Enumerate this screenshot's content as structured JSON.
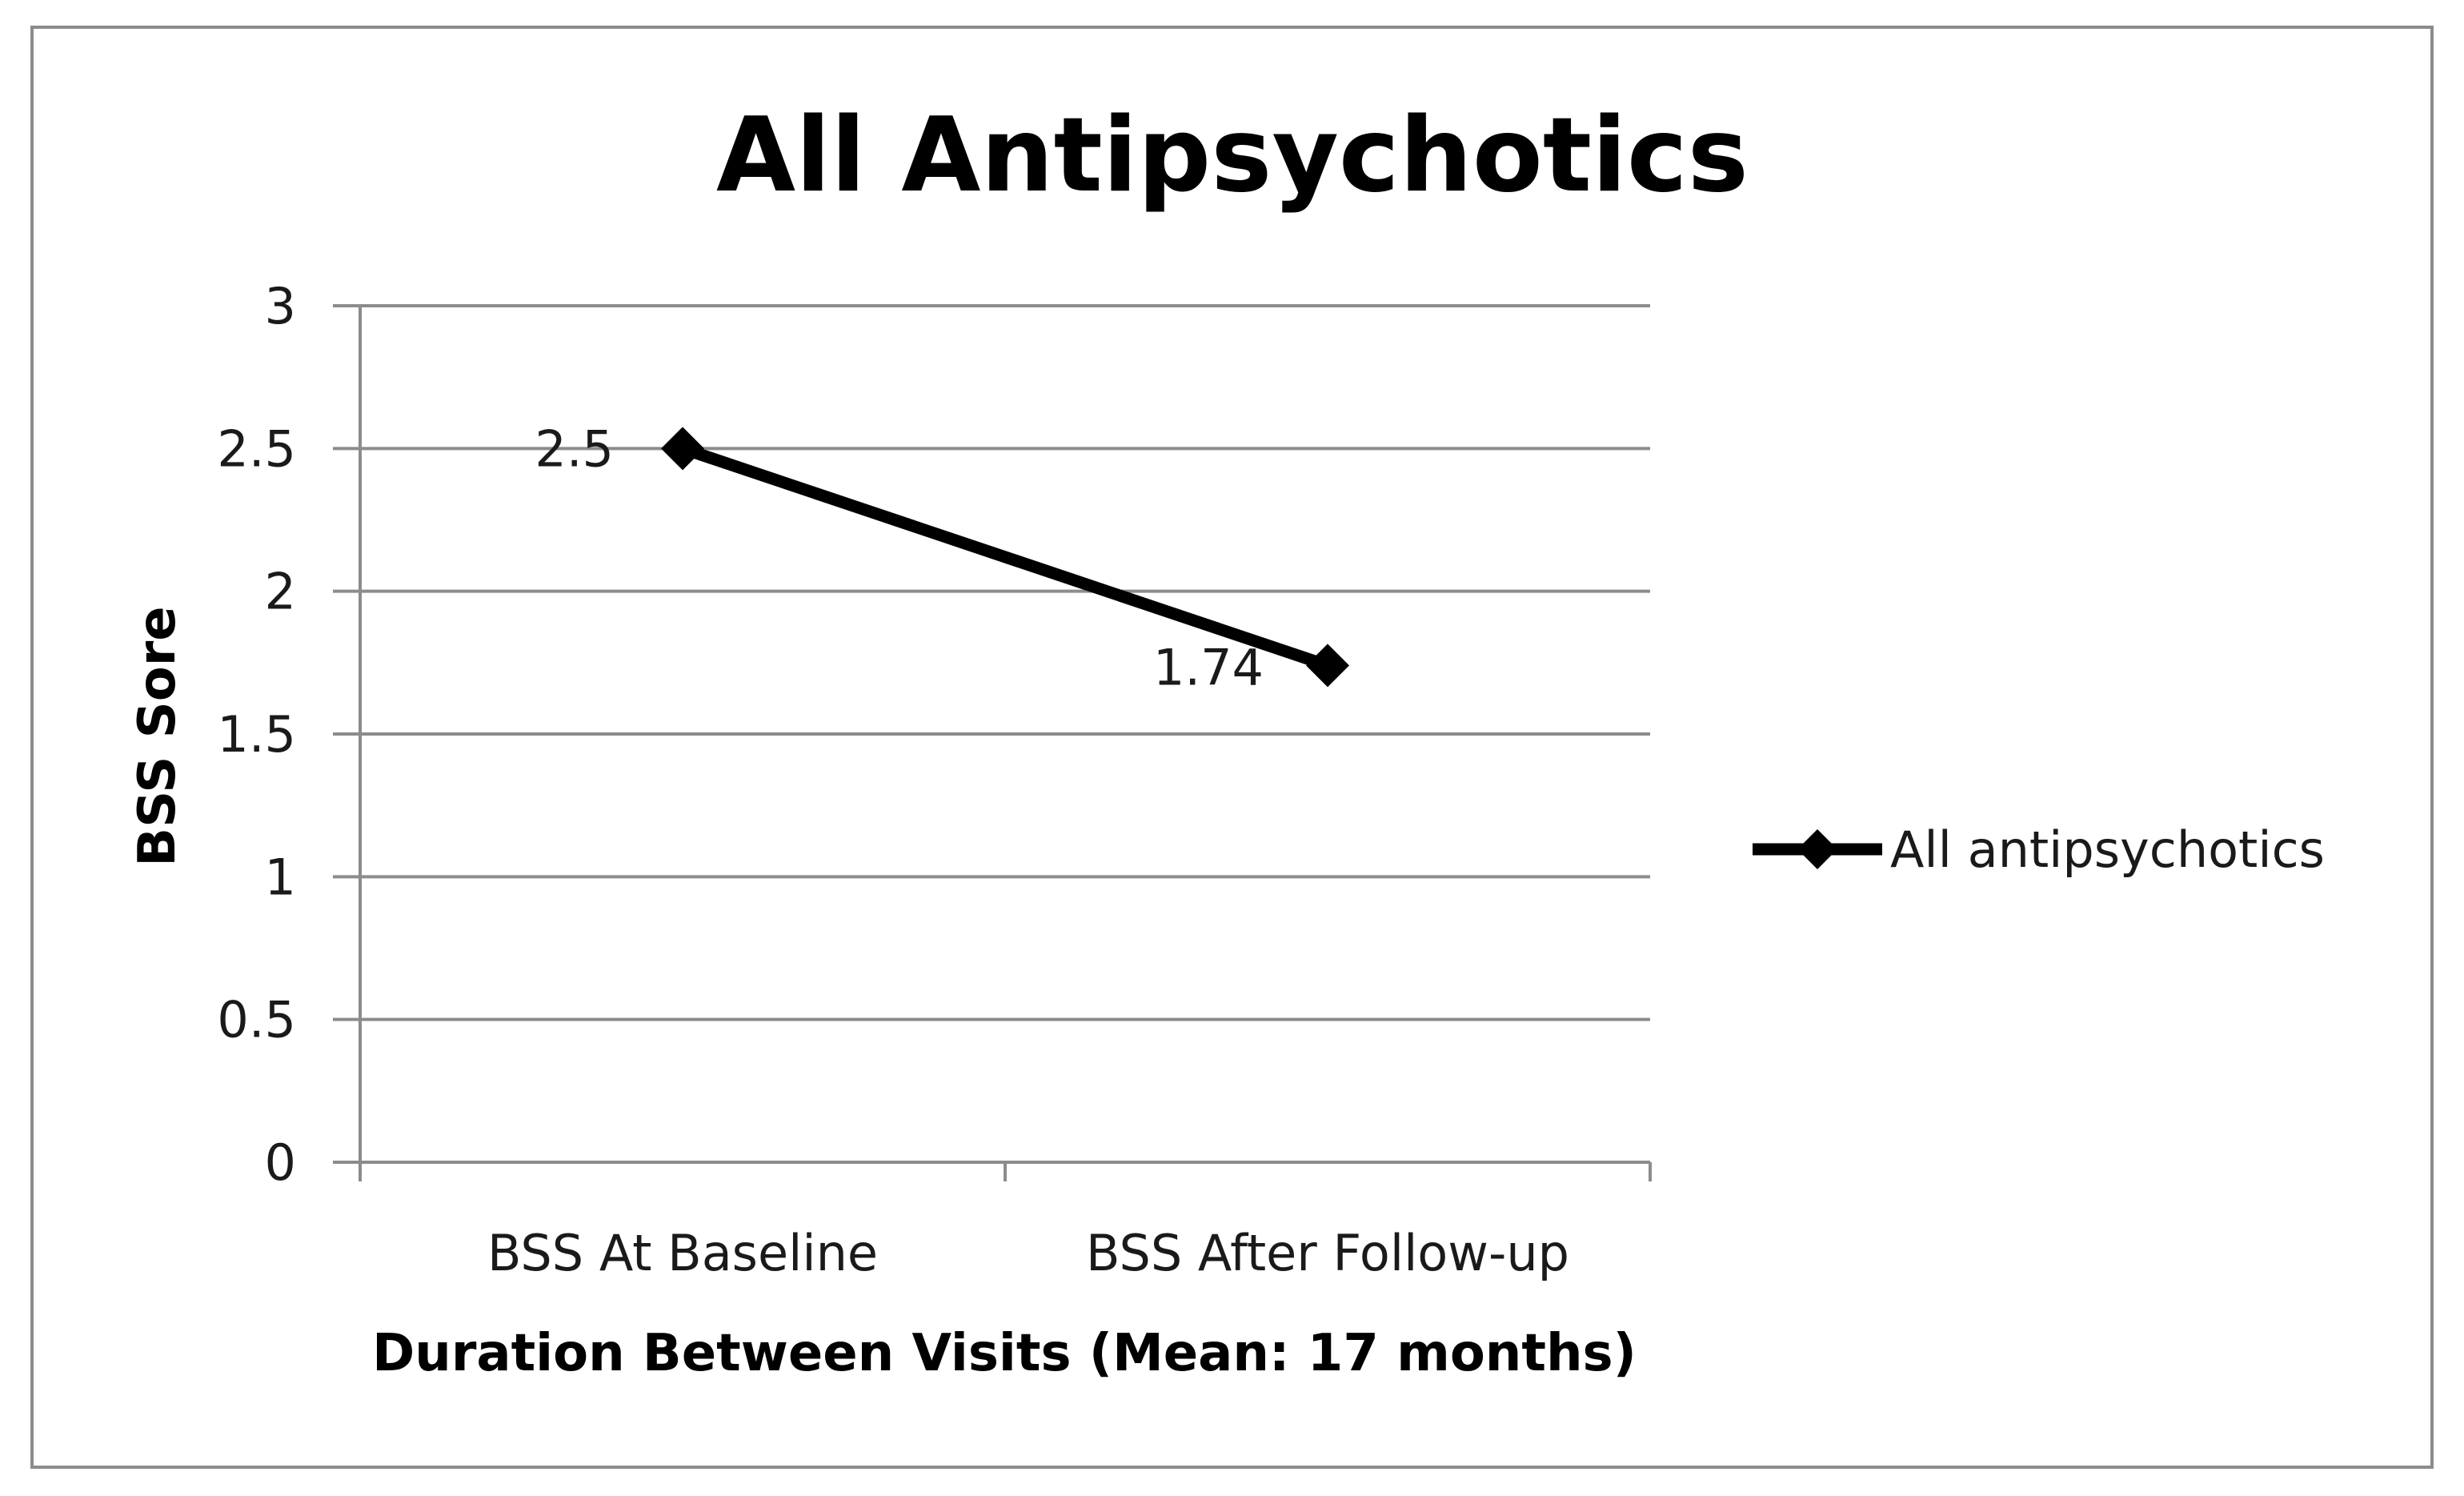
{
  "chart_data": {
    "type": "line",
    "title": "All Antipsychotics",
    "xlabel": "Duration Between Visits (Mean:  17 months)",
    "ylabel": "BSS Sore",
    "categories": [
      "BSS At Baseline",
      "BSS After Follow-up"
    ],
    "series": [
      {
        "name": "All antipsychotics",
        "values": [
          2.5,
          1.74
        ],
        "data_labels": [
          "2.5",
          "1.74"
        ],
        "color": "#000000",
        "marker": "diamond"
      }
    ],
    "ylim": [
      0,
      3
    ],
    "y_ticks": [
      0,
      0.5,
      1,
      1.5,
      2,
      2.5,
      3
    ],
    "y_tick_labels": [
      "0",
      "0.5",
      "1",
      "1.5",
      "2",
      "2.5",
      "3"
    ],
    "grid": true,
    "legend_position": "right",
    "gridline_color": "#8c8c8c",
    "axis_color": "#8c8c8c"
  }
}
